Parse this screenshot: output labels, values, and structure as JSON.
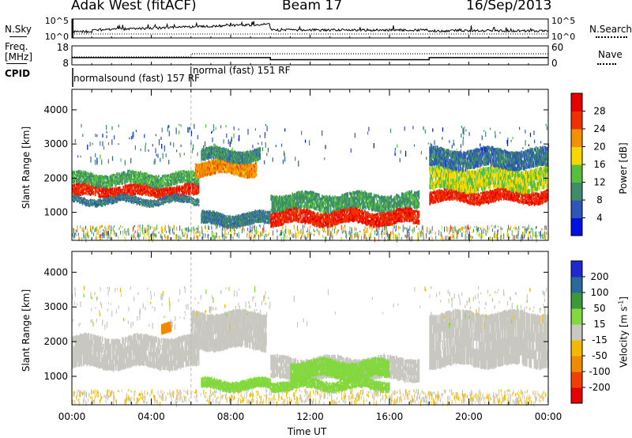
{
  "header": {
    "station": "Adak West (fitACF)",
    "beam": "Beam 17",
    "date": "16/Sep/2013"
  },
  "side_labels": {
    "nsky": "N.Sky",
    "nsearch": "N.Search",
    "freq": "Freq.",
    "mhz": "[MHz]",
    "nave": "Nave",
    "cpid": "CPID"
  },
  "cpid_labels": [
    "normalsound (fast) 157 RF",
    "normal (fast) 151 RF"
  ],
  "chart_data": [
    {
      "type": "line",
      "name_left": "N.Sky",
      "name_right": "N.Search",
      "x_range_hours": [
        0,
        24
      ],
      "left_ticks": [
        "10^5",
        "10^0"
      ],
      "right_ticks": [
        "10^5",
        "10^0"
      ]
    },
    {
      "type": "line",
      "name_left": "Freq. [MHz]",
      "name_right": "Nave",
      "left_ticks": [
        18,
        8
      ],
      "right_ticks": [
        60,
        0
      ],
      "left_range": [
        8,
        18
      ],
      "right_range": [
        0,
        60
      ],
      "freq_steps": [
        {
          "x": [
            0,
            10
          ],
          "y": 11.8
        },
        {
          "x": [
            10,
            18
          ],
          "y": 10.7
        },
        {
          "x": [
            18,
            24
          ],
          "y": 11.8
        }
      ],
      "nave_steps": [
        {
          "x": [
            0,
            6
          ],
          "y": 10
        },
        {
          "x": [
            6,
            24
          ],
          "y": 14
        }
      ]
    },
    {
      "type": "heatmap",
      "ylabel": "Slant Range [km]",
      "yticks": [
        1000,
        2000,
        3000,
        4000
      ],
      "ylim": [
        180,
        4600
      ],
      "colorbar_label": "Power [dB]",
      "colorbar_ticks": [
        4,
        8,
        12,
        16,
        20,
        24,
        28
      ],
      "colors": [
        "#0010e0",
        "#2e55b8",
        "#3f8c6c",
        "#56c03e",
        "#f6d800",
        "#f39100",
        "#f03000",
        "#e80000"
      ],
      "bands": [
        {
          "x": [
            0,
            6.4
          ],
          "r": [
            1450,
            1800
          ],
          "v": 27
        },
        {
          "x": [
            0,
            6.4
          ],
          "r": [
            1800,
            2150
          ],
          "v": 12
        },
        {
          "x": [
            0,
            6.4
          ],
          "r": [
            1250,
            1450
          ],
          "v": 9
        },
        {
          "x": [
            6.2,
            9.3
          ],
          "r": [
            2100,
            2500
          ],
          "v": 22
        },
        {
          "x": [
            6.5,
            9.5
          ],
          "r": [
            2500,
            2850
          ],
          "v": 10
        },
        {
          "x": [
            6.5,
            10.0
          ],
          "r": [
            620,
            980
          ],
          "v": 9
        },
        {
          "x": [
            10.0,
            17.5
          ],
          "r": [
            1050,
            1550
          ],
          "v": 11
        },
        {
          "x": [
            10.0,
            17.5
          ],
          "r": [
            650,
            1050
          ],
          "v": 27
        },
        {
          "x": [
            18.0,
            24.0
          ],
          "r": [
            1300,
            1650
          ],
          "v": 27
        },
        {
          "x": [
            18.0,
            24.0
          ],
          "r": [
            1650,
            2300
          ],
          "v": 16
        },
        {
          "x": [
            18.0,
            24.0
          ],
          "r": [
            2300,
            2850
          ],
          "v": 8
        }
      ]
    },
    {
      "type": "heatmap",
      "ylabel": "Slant Range [km]",
      "yticks": [
        1000,
        2000,
        3000,
        4000
      ],
      "ylim": [
        180,
        4600
      ],
      "colorbar_label": "Velocity [m s^-1]",
      "colorbar_ticks": [
        -200,
        -100,
        -50,
        -15,
        15,
        50,
        100,
        200
      ],
      "colors": [
        "#e80000",
        "#f04000",
        "#f08a00",
        "#f4b800",
        "#c8c8c0",
        "#82d83c",
        "#3a9a3a",
        "#2a6a9a",
        "#1e28d0"
      ],
      "bands": [
        {
          "x": [
            0,
            6.4
          ],
          "r": [
            1250,
            2150
          ],
          "v": 0
        },
        {
          "x": [
            6.0,
            9.8
          ],
          "r": [
            1800,
            2850
          ],
          "v": 0
        },
        {
          "x": [
            4.5,
            5.0
          ],
          "r": [
            2250,
            2500
          ],
          "v": -60
        },
        {
          "x": [
            10.0,
            17.5
          ],
          "r": [
            900,
            1550
          ],
          "v": 0
        },
        {
          "x": [
            11.0,
            16.0
          ],
          "r": [
            950,
            1450
          ],
          "v": 35
        },
        {
          "x": [
            6.5,
            10.0
          ],
          "r": [
            620,
            900
          ],
          "v": 35
        },
        {
          "x": [
            10.0,
            16.0
          ],
          "r": [
            620,
            900
          ],
          "v": 30
        },
        {
          "x": [
            18.0,
            24.0
          ],
          "r": [
            1300,
            2850
          ],
          "v": 0
        }
      ]
    }
  ],
  "x_axis": {
    "label": "Time UT",
    "ticks": [
      "00:00",
      "04:00",
      "08:00",
      "12:00",
      "16:00",
      "20:00",
      "00:00"
    ]
  }
}
